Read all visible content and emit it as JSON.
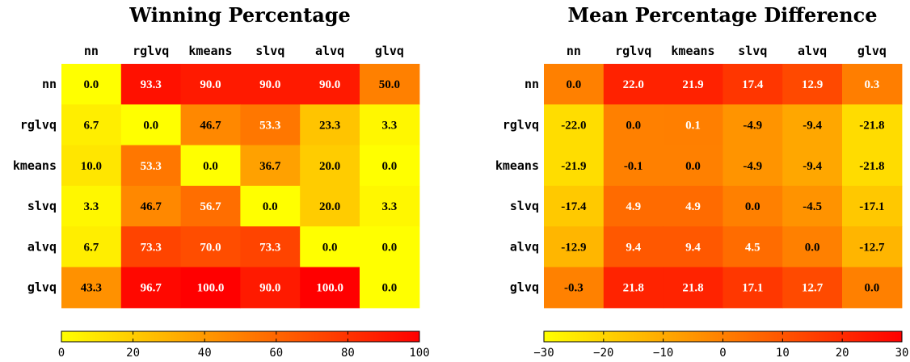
{
  "chart_data": [
    {
      "type": "heatmap",
      "title": "Winning Percentage",
      "columns": [
        "nn",
        "rglvq",
        "kmeans",
        "slvq",
        "alvq",
        "glvq"
      ],
      "rows": [
        "nn",
        "rglvq",
        "kmeans",
        "slvq",
        "alvq",
        "glvq"
      ],
      "values": [
        [
          "0.0",
          "93.3",
          "90.0",
          "90.0",
          "90.0",
          "50.0"
        ],
        [
          "6.7",
          "0.0",
          "46.7",
          "53.3",
          "23.3",
          "3.3"
        ],
        [
          "10.0",
          "53.3",
          "0.0",
          "36.7",
          "20.0",
          "0.0"
        ],
        [
          "3.3",
          "46.7",
          "56.7",
          "0.0",
          "20.0",
          "3.3"
        ],
        [
          "6.7",
          "73.3",
          "70.0",
          "73.3",
          "0.0",
          "0.0"
        ],
        [
          "43.3",
          "96.7",
          "100.0",
          "90.0",
          "100.0",
          "0.0"
        ]
      ],
      "colorbar": {
        "min": 0,
        "max": 100,
        "ticks": [
          "0",
          "20",
          "40",
          "60",
          "80",
          "100"
        ],
        "colors": [
          "#ffff00",
          "#ff0000"
        ]
      }
    },
    {
      "type": "heatmap",
      "title": "Mean Percentage Difference",
      "columns": [
        "nn",
        "rglvq",
        "kmeans",
        "slvq",
        "alvq",
        "glvq"
      ],
      "rows": [
        "nn",
        "rglvq",
        "kmeans",
        "slvq",
        "alvq",
        "glvq"
      ],
      "values": [
        [
          "0.0",
          "22.0",
          "21.9",
          "17.4",
          "12.9",
          "0.3"
        ],
        [
          "-22.0",
          "0.0",
          "0.1",
          "-4.9",
          "-9.4",
          "-21.8"
        ],
        [
          "-21.9",
          "-0.1",
          "0.0",
          "-4.9",
          "-9.4",
          "-21.8"
        ],
        [
          "-17.4",
          "4.9",
          "4.9",
          "0.0",
          "-4.5",
          "-17.1"
        ],
        [
          "-12.9",
          "9.4",
          "9.4",
          "4.5",
          "0.0",
          "-12.7"
        ],
        [
          "-0.3",
          "21.8",
          "21.8",
          "17.1",
          "12.7",
          "0.0"
        ]
      ],
      "colorbar": {
        "min": -30,
        "max": 30,
        "ticks": [
          "−30",
          "−20",
          "−10",
          "0",
          "10",
          "20",
          "30"
        ],
        "colors": [
          "#ffff00",
          "#ff0000"
        ]
      }
    }
  ]
}
